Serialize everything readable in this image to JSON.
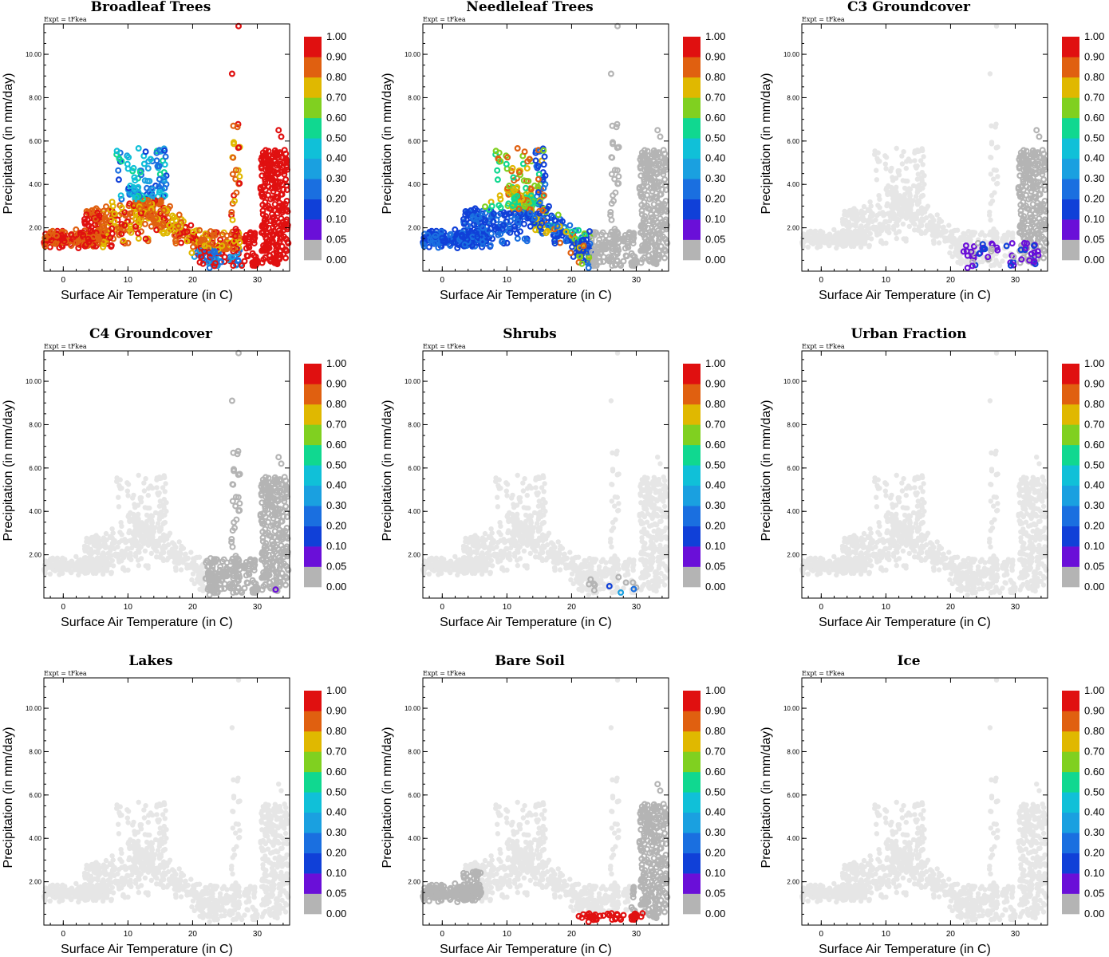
{
  "chart_data": {
    "type": "scatter",
    "experiment_label": "Expt = tFkea",
    "xlabel": "Surface Air Temperature (in C)",
    "ylabel": "Precipitation (in mm/day)",
    "xlim": [
      -3,
      35
    ],
    "ylim": [
      0,
      11.4
    ],
    "xticks": [
      "0",
      "10",
      "20",
      "30"
    ],
    "yticks": [
      "2.00",
      "4.00",
      "6.00",
      "8.00",
      "10.00"
    ],
    "colorbar": {
      "labels": [
        "0.00",
        "0.05",
        "0.10",
        "0.20",
        "0.30",
        "0.40",
        "0.50",
        "0.60",
        "0.70",
        "0.80",
        "0.90",
        "1.00"
      ],
      "colors": [
        "#b4b4b4",
        "#6a0fd8",
        "#1040d8",
        "#1a6fe0",
        "#1aa0e0",
        "#10c0d8",
        "#10d890",
        "#80d020",
        "#e0b800",
        "#e06010",
        "#e01010"
      ]
    },
    "panels": [
      {
        "title": "Broadleaf Trees",
        "profile": "broadleaf"
      },
      {
        "title": "Needleleaf Trees",
        "profile": "needleleaf"
      },
      {
        "title": "C3 Groundcover",
        "profile": "c3"
      },
      {
        "title": "C4 Groundcover",
        "profile": "c4"
      },
      {
        "title": "Shrubs",
        "profile": "shrubs"
      },
      {
        "title": "Urban Fraction",
        "profile": "urban"
      },
      {
        "title": "Lakes",
        "profile": "lakes"
      },
      {
        "title": "Bare Soil",
        "profile": "baresoil"
      },
      {
        "title": "Ice",
        "profile": "ice"
      }
    ]
  }
}
